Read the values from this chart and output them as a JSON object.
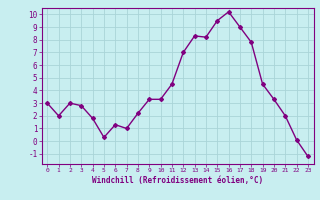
{
  "x": [
    0,
    1,
    2,
    3,
    4,
    5,
    6,
    7,
    8,
    9,
    10,
    11,
    12,
    13,
    14,
    15,
    16,
    17,
    18,
    19,
    20,
    21,
    22,
    23
  ],
  "y": [
    3.0,
    2.0,
    3.0,
    2.8,
    1.8,
    0.3,
    1.3,
    1.0,
    2.2,
    3.3,
    3.3,
    4.5,
    7.0,
    8.3,
    8.2,
    9.5,
    10.2,
    9.0,
    7.8,
    4.5,
    3.3,
    2.0,
    0.1,
    -1.2
  ],
  "line_color": "#800080",
  "marker": "D",
  "marker_size": 2.0,
  "line_width": 1.0,
  "bg_color": "#c8eef0",
  "grid_color": "#aad4d8",
  "xlabel": "Windchill (Refroidissement éolien,°C)",
  "xlabel_color": "#800080",
  "tick_color": "#800080",
  "xlim": [
    -0.5,
    23.5
  ],
  "ylim": [
    -1.8,
    10.5
  ],
  "xticks": [
    0,
    1,
    2,
    3,
    4,
    5,
    6,
    7,
    8,
    9,
    10,
    11,
    12,
    13,
    14,
    15,
    16,
    17,
    18,
    19,
    20,
    21,
    22,
    23
  ],
  "yticks": [
    -1,
    0,
    1,
    2,
    3,
    4,
    5,
    6,
    7,
    8,
    9,
    10
  ]
}
